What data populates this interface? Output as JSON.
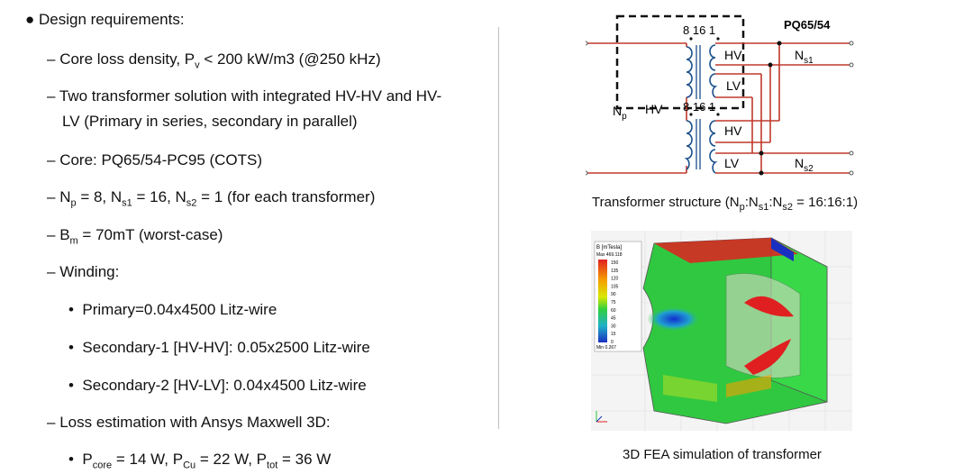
{
  "requirements": {
    "heading": "Design requirements:",
    "core_loss": {
      "label": "Core loss density, P",
      "sub": "v",
      "rest": " < 200 kW/m3 (@250 kHz)"
    },
    "two_transformer": {
      "line1": "Two transformer solution with integrated HV-HV and HV-",
      "line2": "LV (Primary in series, secondary in parallel)"
    },
    "core": "Core: PQ65/54-PC95 (COTS)",
    "turns": {
      "n": "N",
      "p": "p",
      "eq1": " = 8, N",
      "s1": "s1",
      "eq2": " = 16, N",
      "s2": "s2",
      "eq3": " = 1 (for each transformer)"
    },
    "bm": {
      "b": "B",
      "m": "m",
      "rest": " = 70mT (worst-case)"
    },
    "winding": "Winding:",
    "primary": "Primary=0.04x4500 Litz-wire",
    "sec1": "Secondary-1 [HV-HV]: 0.05x2500 Litz-wire",
    "sec2": "Secondary-2 [HV-LV]:  0.04x4500 Litz-wire",
    "loss": "Loss estimation with Ansys Maxwell 3D:",
    "ploss": {
      "p1": "P",
      "core": "core",
      "v1": " = 14 W, P",
      "cu": "Cu",
      "v2": " = 22 W, P",
      "tot": "tot",
      "v3": " = 36 W"
    }
  },
  "schematic": {
    "title": "PQ65/54",
    "top_pins": "8  16  1",
    "bottom_pins": "8  16  1",
    "hv": "HV",
    "lv": "LV",
    "np_n": "N",
    "np_sub": "p",
    "hv_left": "HV",
    "ns1_n": "N",
    "ns1_sub": "s1",
    "ns2_n": "N",
    "ns2_sub": "s2",
    "caption": {
      "pre": "Transformer structure (N",
      "p": "p",
      "c1": ":N",
      "s1": "s1",
      "c2": ":N",
      "s2": "s2",
      "post": " = 16:16:1)"
    }
  },
  "fea": {
    "legend_title": "B [mTesla]",
    "max_label": "Max  469.118",
    "min_label": "Min  0.267",
    "ticks": [
      "150",
      "135",
      "120",
      "105",
      "90",
      "75",
      "60",
      "45",
      "30",
      "15",
      "0"
    ],
    "caption": "3D FEA simulation of transformer"
  },
  "colors": {
    "wire": "#c0392b",
    "core": "#1a4f8a",
    "divider": "#bfbfbf"
  }
}
